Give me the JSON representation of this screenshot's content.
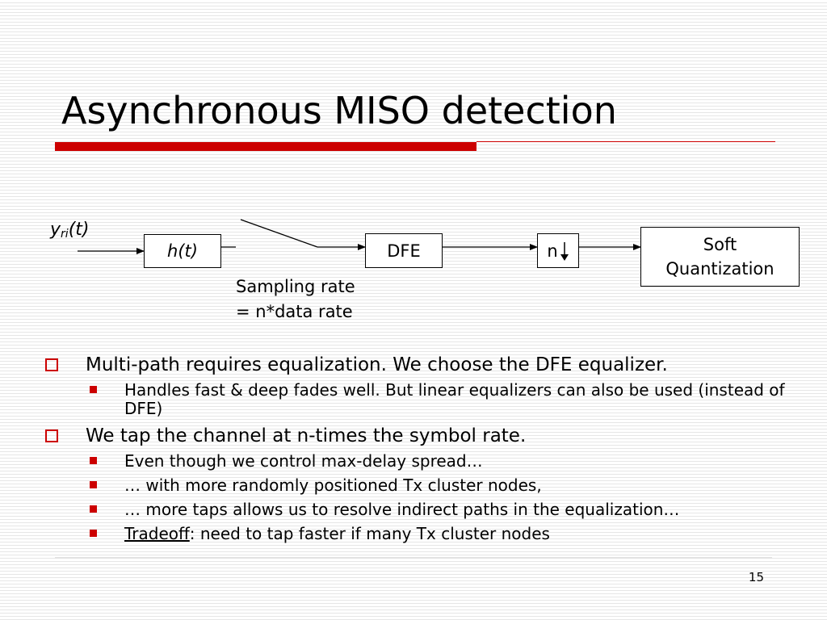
{
  "slide": {
    "title": "Asynchronous MISO detection",
    "page_number": "15"
  },
  "diagram": {
    "input_label_main": "y",
    "input_label_sub": "ri",
    "input_label_arg": "(t)",
    "blocks": {
      "channel": "h(t)",
      "equalizer": "DFE",
      "downsampler": "n",
      "soft_quant_line1": "Soft",
      "soft_quant_line2": "Quantization"
    },
    "sampling_line1": "Sampling rate",
    "sampling_line2": "= n*data rate"
  },
  "bullets": [
    {
      "text": "Multi-path requires equalization. We choose the DFE equalizer.",
      "sub": [
        "Handles fast & deep fades well. But linear equalizers can also be used (instead of DFE)"
      ]
    },
    {
      "text": "We tap the channel at n-times the symbol rate.",
      "sub": [
        "Even though we control max-delay spread…",
        "… with more randomly positioned Tx cluster nodes,",
        "… more taps allows us to resolve indirect paths in the equalization…"
      ],
      "tradeoff_word": "Tradeoff",
      "tradeoff_rest": ": need to tap faster if many Tx cluster nodes"
    }
  ],
  "colors": {
    "accent_red": "#cc0000"
  }
}
